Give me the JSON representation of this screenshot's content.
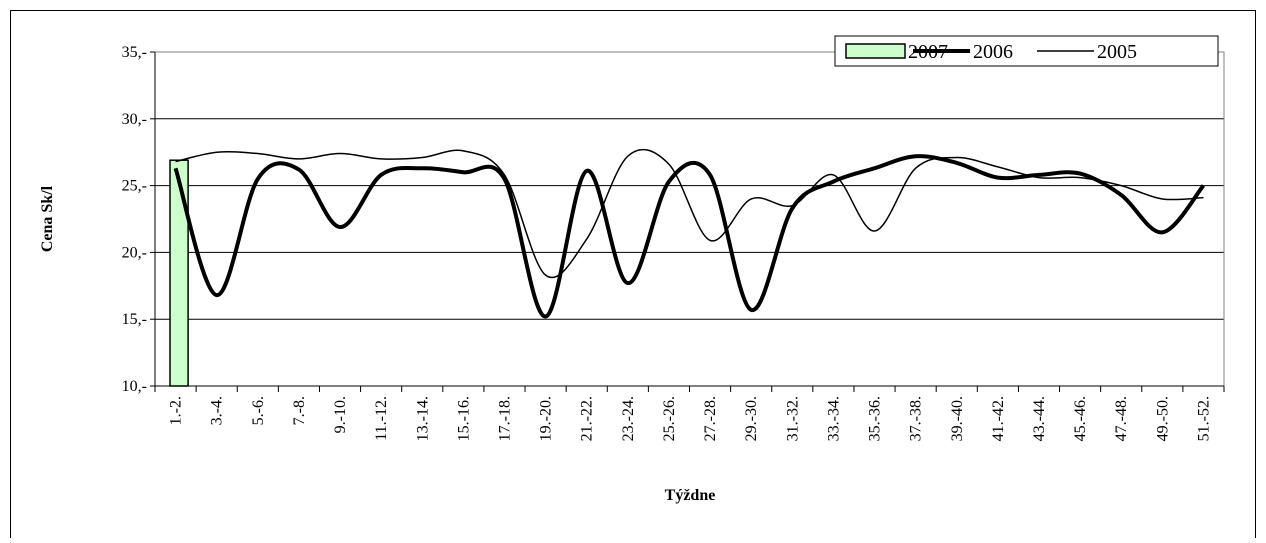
{
  "chart_data": {
    "type": "bar-line",
    "y_label": "Cena Sk/l",
    "x_label": "Týždne",
    "categories": [
      "1.-2.",
      "3.-4.",
      "5.-6.",
      "7.-8.",
      "9.-10.",
      "11.-12.",
      "13.-14.",
      "15.-16.",
      "17.-18.",
      "19.-20.",
      "21.-22.",
      "23.-24.",
      "25.-26.",
      "27.-28.",
      "29.-30.",
      "31.-32.",
      "33.-34.",
      "35.-36.",
      "37.-38.",
      "39.-40.",
      "41.-42.",
      "43.-44.",
      "45.-46.",
      "47.-48.",
      "49.-50.",
      "51.-52."
    ],
    "series": [
      {
        "name": "2007",
        "type": "bar",
        "color": "#ccffcc",
        "values": [
          26.9,
          null,
          null,
          null,
          null,
          null,
          null,
          null,
          null,
          null,
          null,
          null,
          null,
          null,
          null,
          null,
          null,
          null,
          null,
          null,
          null,
          null,
          null,
          null,
          null,
          null
        ]
      },
      {
        "name": "2006",
        "type": "line",
        "color": "#000000",
        "width": 4,
        "values": [
          26.3,
          16.8,
          25.5,
          26.2,
          21.9,
          25.8,
          26.3,
          26.0,
          25.5,
          15.2,
          26.1,
          17.7,
          25.3,
          25.8,
          15.7,
          23.3,
          25.3,
          26.3,
          27.2,
          26.7,
          25.6,
          25.8,
          25.9,
          24.3,
          21.5,
          25.0
        ]
      },
      {
        "name": "2005",
        "type": "line",
        "color": "#000000",
        "width": 1.5,
        "values": [
          26.8,
          27.5,
          27.4,
          27.0,
          27.4,
          27.0,
          27.1,
          27.6,
          25.8,
          18.3,
          21.0,
          27.2,
          26.6,
          20.9,
          24.0,
          23.5,
          25.8,
          21.6,
          26.3,
          27.1,
          26.4,
          25.6,
          25.6,
          25.0,
          24.0,
          24.1
        ]
      }
    ],
    "ylim": [
      10,
      35
    ],
    "yticks": [
      {
        "value": 10,
        "label": "10,-"
      },
      {
        "value": 15,
        "label": "15,-"
      },
      {
        "value": 20,
        "label": "20,-"
      },
      {
        "value": 25,
        "label": "25,-"
      },
      {
        "value": 30,
        "label": "30,-"
      },
      {
        "value": 35,
        "label": "35,-"
      }
    ],
    "grid": true,
    "legend": "top-right"
  }
}
